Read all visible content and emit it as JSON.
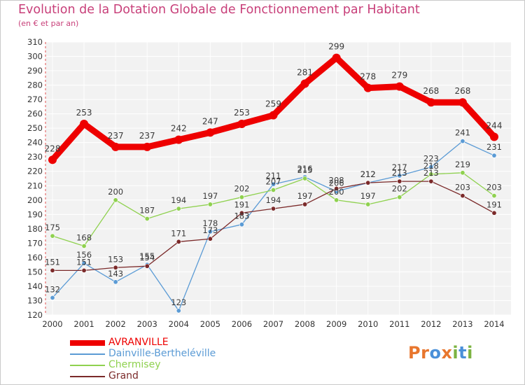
{
  "header": {
    "title": "Evolution de la Dotation Globale de Fonctionnement par Habitant",
    "subtitle": "(en € et par an)"
  },
  "logo": {
    "text": "Proxiti",
    "letters": [
      "P",
      "r",
      "o",
      "x",
      "i",
      "t",
      "i"
    ],
    "colors": [
      "#e8762d",
      "#e8762d",
      "#4a90d9",
      "#e8762d",
      "#7cb342",
      "#4a90d9",
      "#7cb342"
    ]
  },
  "chart_data": {
    "type": "line",
    "title": "Evolution de la Dotation Globale de Fonctionnement par Habitant",
    "subtitle": "(en € et par an)",
    "x": [
      "2000",
      "2001",
      "2002",
      "2003",
      "2004",
      "2005",
      "2006",
      "2007",
      "2008",
      "2009",
      "2010",
      "2011",
      "2012",
      "2013",
      "2014"
    ],
    "yticks": [
      120,
      130,
      140,
      150,
      160,
      170,
      180,
      190,
      200,
      210,
      220,
      230,
      240,
      250,
      260,
      270,
      280,
      290,
      300,
      310
    ],
    "ylim": [
      120,
      310
    ],
    "grid": true,
    "legend_position": "bottom-left",
    "series": [
      {
        "name": "AVRANVILLE",
        "color": "#ee0000",
        "values": [
          228,
          253,
          237,
          237,
          242,
          247,
          253,
          259,
          281,
          299,
          278,
          279,
          268,
          268,
          244
        ]
      },
      {
        "name": "Dainville-Bertheléville",
        "color": "#5b9bd5",
        "values": [
          132,
          156,
          143,
          155,
          123,
          178,
          183,
          211,
          216,
          206,
          212,
          217,
          223,
          241,
          231
        ]
      },
      {
        "name": "Chermisey",
        "color": "#8fd14f",
        "values": [
          175,
          168,
          200,
          187,
          194,
          197,
          202,
          207,
          215,
          200,
          197,
          202,
          218,
          219,
          203
        ]
      },
      {
        "name": "Grand",
        "color": "#7b2a2a",
        "values": [
          151,
          151,
          153,
          154,
          171,
          173,
          191,
          194,
          197,
          208,
          212,
          213,
          213,
          203,
          191
        ]
      }
    ]
  }
}
